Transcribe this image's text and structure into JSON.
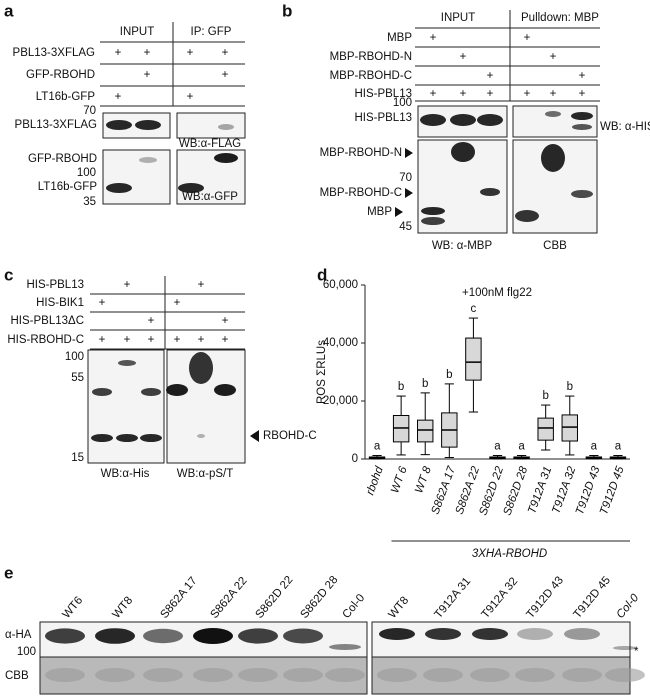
{
  "panel_a": {
    "label": "a",
    "headers": [
      "INPUT",
      "IP: GFP"
    ],
    "rows": [
      {
        "name": "PBL13-3XFLAG",
        "signs": [
          "+",
          "+",
          "+",
          "+"
        ]
      },
      {
        "name": "GFP-RBOHD",
        "signs": [
          "+",
          "+"
        ]
      },
      {
        "name": "LT16b-GFP",
        "signs": [
          "+",
          "+"
        ]
      }
    ],
    "blot_labels": [
      "PBL13-3XFLAG",
      "GFP-RBOHD",
      "LT16b-GFP"
    ],
    "markers": [
      "70",
      "100",
      "35"
    ],
    "antibodies": [
      "WB:α-FLAG",
      "WB:α-GFP"
    ]
  },
  "panel_b": {
    "label": "b",
    "headers": [
      "INPUT",
      "Pulldown: MBP"
    ],
    "rows": [
      {
        "name": "MBP",
        "signs": [
          "+",
          "+"
        ]
      },
      {
        "name": "MBP-RBOHD-N",
        "signs": [
          "+",
          "+"
        ]
      },
      {
        "name": "MBP-RBOHD-C",
        "signs": [
          "+",
          "+"
        ]
      },
      {
        "name": "HIS-PBL13",
        "signs": [
          "+",
          "+",
          "+",
          "+",
          "+",
          "+"
        ]
      }
    ],
    "blot_labels": [
      "HIS-PBL13",
      "MBP-RBOHD-N",
      "MBP-RBOHD-C",
      "MBP"
    ],
    "markers": [
      "100",
      "70",
      "45"
    ],
    "antibodies": [
      "WB: α-HIS",
      "WB: α-MBP",
      "CBB"
    ]
  },
  "panel_c": {
    "label": "c",
    "rows": [
      {
        "name": "HIS-PBL13",
        "signs": [
          "+",
          "+"
        ]
      },
      {
        "name": "HIS-BIK1",
        "signs": [
          "+",
          "+"
        ]
      },
      {
        "name": "HIS-PBL13ΔC",
        "signs": [
          "+",
          "+"
        ]
      },
      {
        "name": "HIS-RBOHD-C",
        "signs": [
          "+",
          "+",
          "+",
          "+",
          "+",
          "+"
        ]
      }
    ],
    "markers": [
      "100",
      "55",
      "15"
    ],
    "band_label": "RBOHD-C",
    "antibodies": [
      "WB:α-His",
      "WB:α-pS/T"
    ]
  },
  "chart_data": {
    "type": "box",
    "panel_label": "d",
    "annotation": "+100nM flg22",
    "y_label": "ROS ΣRLUs",
    "group_label": "3XHA-RBOHD",
    "color": "#000000",
    "categories": [
      "rbohd",
      "WT 6",
      "WT 8",
      "S862A 17",
      "S862A 22",
      "S862D 22",
      "S862D 28",
      "T912A 31",
      "T912A 32",
      "T912D 43",
      "T912D 45"
    ],
    "min": [
      0,
      1400,
      1500,
      500,
      16200,
      0,
      0,
      3100,
      1400,
      0,
      0
    ],
    "q1": [
      200,
      5900,
      5900,
      4100,
      27200,
      200,
      200,
      6500,
      6200,
      200,
      200
    ],
    "median": [
      400,
      10700,
      10000,
      10000,
      33400,
      400,
      400,
      10700,
      11000,
      400,
      400
    ],
    "q3": [
      700,
      15000,
      13400,
      15900,
      41700,
      700,
      700,
      14100,
      15200,
      700,
      700
    ],
    "max": [
      1200,
      21700,
      22800,
      25900,
      48600,
      1200,
      1200,
      18600,
      21700,
      1200,
      1200
    ],
    "letters": [
      "a",
      "b",
      "b",
      "b",
      "c",
      "a",
      "a",
      "b",
      "b",
      "a",
      "a"
    ],
    "ylim": [
      0,
      60000
    ],
    "yticks": [
      0,
      {
        "value": 20000,
        "label": "20,000"
      },
      {
        "value": 40000,
        "label": "40,000"
      },
      {
        "value": 60000,
        "label": "60,000"
      }
    ]
  },
  "panel_e": {
    "label": "e",
    "lanes_left": [
      "WT6",
      "WT8",
      "S862A 17",
      "S862A 22",
      "S862D 22",
      "S862D 28",
      "Col-0"
    ],
    "lanes_right": [
      "WT8",
      "T912A 31",
      "T912A 32",
      "T912D 43",
      "T912D 45",
      "Col-0"
    ],
    "rows": [
      "α-HA",
      "CBB"
    ],
    "marker": "100",
    "note": "*"
  }
}
